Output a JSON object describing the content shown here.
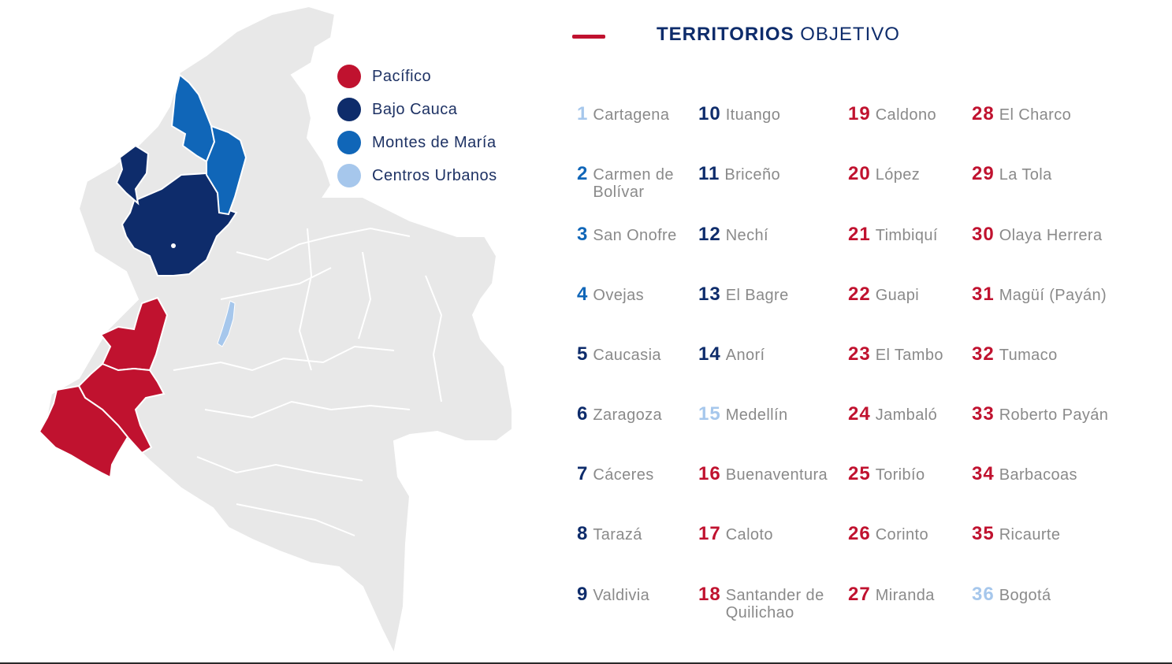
{
  "title": {
    "bold": "TERRITORIOS",
    "light": "OBJETIVO"
  },
  "colors": {
    "pacifico": "#c0122f",
    "bajo_cauca": "#0e2c6b",
    "montes_de_maria": "#1066b8",
    "centros_urbanos": "#a6c7ec",
    "land": "#e8e8e8",
    "border": "#ffffff"
  },
  "legend": [
    {
      "label": "Pacífico",
      "region": "pacifico"
    },
    {
      "label": "Bajo Cauca",
      "region": "bajo_cauca"
    },
    {
      "label": "Montes de María",
      "region": "montes_de_maria"
    },
    {
      "label": "Centros Urbanos",
      "region": "centros_urbanos"
    }
  ],
  "territories": [
    {
      "num": "1",
      "name": "Cartagena",
      "region": "centros_urbanos"
    },
    {
      "num": "2",
      "name": "Carmen de Bolívar",
      "region": "montes_de_maria"
    },
    {
      "num": "3",
      "name": "San Onofre",
      "region": "montes_de_maria"
    },
    {
      "num": "4",
      "name": "Ovejas",
      "region": "montes_de_maria"
    },
    {
      "num": "5",
      "name": "Caucasia",
      "region": "bajo_cauca"
    },
    {
      "num": "6",
      "name": "Zaragoza",
      "region": "bajo_cauca"
    },
    {
      "num": "7",
      "name": "Cáceres",
      "region": "bajo_cauca"
    },
    {
      "num": "8",
      "name": "Tarazá",
      "region": "bajo_cauca"
    },
    {
      "num": "9",
      "name": "Valdivia",
      "region": "bajo_cauca"
    },
    {
      "num": "10",
      "name": "Ituango",
      "region": "bajo_cauca"
    },
    {
      "num": "11",
      "name": "Briceño",
      "region": "bajo_cauca"
    },
    {
      "num": "12",
      "name": "Nechí",
      "region": "bajo_cauca"
    },
    {
      "num": "13",
      "name": "El Bagre",
      "region": "bajo_cauca"
    },
    {
      "num": "14",
      "name": "Anorí",
      "region": "bajo_cauca"
    },
    {
      "num": "15",
      "name": "Medellín",
      "region": "centros_urbanos"
    },
    {
      "num": "16",
      "name": "Buenaventura",
      "region": "pacifico"
    },
    {
      "num": "17",
      "name": "Caloto",
      "region": "pacifico"
    },
    {
      "num": "18",
      "name": "Santander de Quilichao",
      "region": "pacifico"
    },
    {
      "num": "19",
      "name": "Caldono",
      "region": "pacifico"
    },
    {
      "num": "20",
      "name": "López",
      "region": "pacifico"
    },
    {
      "num": "21",
      "name": "Timbiquí",
      "region": "pacifico"
    },
    {
      "num": "22",
      "name": "Guapi",
      "region": "pacifico"
    },
    {
      "num": "23",
      "name": "El Tambo",
      "region": "pacifico"
    },
    {
      "num": "24",
      "name": "Jambaló",
      "region": "pacifico"
    },
    {
      "num": "25",
      "name": "Toribío",
      "region": "pacifico"
    },
    {
      "num": "26",
      "name": "Corinto",
      "region": "pacifico"
    },
    {
      "num": "27",
      "name": "Miranda",
      "region": "pacifico"
    },
    {
      "num": "28",
      "name": "El Charco",
      "region": "pacifico"
    },
    {
      "num": "29",
      "name": "La Tola",
      "region": "pacifico"
    },
    {
      "num": "30",
      "name": "Olaya Herrera",
      "region": "pacifico"
    },
    {
      "num": "31",
      "name": "Magüí (Payán)",
      "region": "pacifico"
    },
    {
      "num": "32",
      "name": "Tumaco",
      "region": "pacifico"
    },
    {
      "num": "33",
      "name": "Roberto Payán",
      "region": "pacifico"
    },
    {
      "num": "34",
      "name": "Barbacoas",
      "region": "pacifico"
    },
    {
      "num": "35",
      "name": "Ricaurte",
      "region": "pacifico"
    },
    {
      "num": "36",
      "name": "Bogotá",
      "region": "centros_urbanos"
    }
  ],
  "map_regions": [
    {
      "id": "country",
      "region": "land"
    },
    {
      "id": "antioquia-bajo-cauca",
      "region": "bajo_cauca"
    },
    {
      "id": "uraba-bajo-cauca",
      "region": "bajo_cauca"
    },
    {
      "id": "montes-de-maria-west",
      "region": "montes_de_maria"
    },
    {
      "id": "montes-de-maria-east",
      "region": "montes_de_maria"
    },
    {
      "id": "pacifico-valle",
      "region": "pacifico"
    },
    {
      "id": "pacifico-cauca",
      "region": "pacifico"
    },
    {
      "id": "pacifico-narino",
      "region": "pacifico"
    },
    {
      "id": "centro-urbano-lake",
      "region": "centros_urbanos"
    }
  ]
}
